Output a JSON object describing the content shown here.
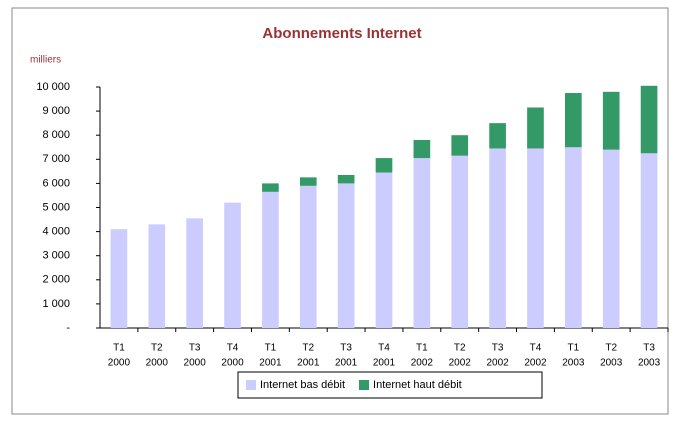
{
  "chart_data": {
    "type": "stacked_bar",
    "title": "Abonnements Internet",
    "y_label": "milliers",
    "categories": [
      [
        "T1",
        "2000"
      ],
      [
        "T2",
        "2000"
      ],
      [
        "T3",
        "2000"
      ],
      [
        "T4",
        "2000"
      ],
      [
        "T1",
        "2001"
      ],
      [
        "T2",
        "2001"
      ],
      [
        "T3",
        "2001"
      ],
      [
        "T4",
        "2001"
      ],
      [
        "T1",
        "2002"
      ],
      [
        "T2",
        "2002"
      ],
      [
        "T3",
        "2002"
      ],
      [
        "T4",
        "2002"
      ],
      [
        "T1",
        "2003"
      ],
      [
        "T2",
        "2003"
      ],
      [
        "T3",
        "2003"
      ]
    ],
    "series": [
      {
        "name": "Internet bas débit",
        "color": "#ccccff",
        "values": [
          4100,
          4300,
          4550,
          5200,
          5650,
          5900,
          6000,
          6450,
          7050,
          7150,
          7450,
          7450,
          7500,
          7400,
          7250
        ]
      },
      {
        "name": "Internet haut débit",
        "color": "#339966",
        "values": [
          null,
          null,
          null,
          null,
          350,
          350,
          350,
          600,
          750,
          850,
          1050,
          1700,
          2250,
          2400,
          2800
        ]
      }
    ],
    "ylim": [
      0,
      10000
    ],
    "yticks": [
      {
        "value": 0,
        "label": "-"
      },
      {
        "value": 1000,
        "label": "1 000"
      },
      {
        "value": 2000,
        "label": "2 000"
      },
      {
        "value": 3000,
        "label": "3 000"
      },
      {
        "value": 4000,
        "label": "4 000"
      },
      {
        "value": 5000,
        "label": "5 000"
      },
      {
        "value": 6000,
        "label": "6 000"
      },
      {
        "value": 7000,
        "label": "7 000"
      },
      {
        "value": 8000,
        "label": "8 000"
      },
      {
        "value": 9000,
        "label": "9 000"
      },
      {
        "value": 10000,
        "label": "10 000"
      }
    ],
    "legend": "bottom"
  }
}
